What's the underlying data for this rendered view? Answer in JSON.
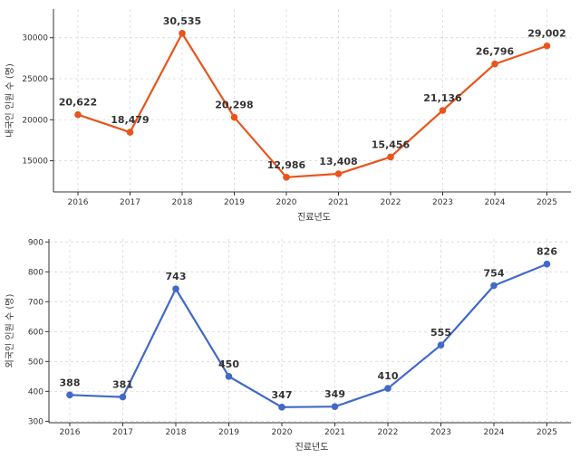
{
  "chart_data": [
    {
      "type": "line",
      "title": "",
      "xlabel": "진료년도",
      "ylabel": "내국인 인원 수 (명)",
      "x": [
        "2016",
        "2017",
        "2018",
        "2019",
        "2020",
        "2021",
        "2022",
        "2023",
        "2024",
        "2025"
      ],
      "values": [
        20622,
        18479,
        30535,
        20298,
        12986,
        13408,
        15456,
        21136,
        26796,
        29002
      ],
      "value_labels": [
        "20,622",
        "18,479",
        "30,535",
        "20,298",
        "12,986",
        "13,408",
        "15,456",
        "21,136",
        "26,796",
        "29,002"
      ],
      "yticks": [
        "15000",
        "20000",
        "25000",
        "30000"
      ],
      "ylim": [
        11200,
        33500
      ],
      "grid": true,
      "color": "#e8541c"
    },
    {
      "type": "line",
      "title": "",
      "xlabel": "진료년도",
      "ylabel": "외국인 인원 수 (명)",
      "x": [
        "2016",
        "2017",
        "2018",
        "2019",
        "2020",
        "2021",
        "2022",
        "2023",
        "2024",
        "2025"
      ],
      "values": [
        388,
        381,
        743,
        450,
        347,
        349,
        410,
        555,
        754,
        826
      ],
      "value_labels": [
        "388",
        "381",
        "743",
        "450",
        "347",
        "349",
        "410",
        "555",
        "754",
        "826"
      ],
      "yticks": [
        "300",
        "400",
        "500",
        "600",
        "700",
        "800",
        "900"
      ],
      "ylim": [
        295,
        910
      ],
      "grid": true,
      "color": "#4169c8"
    }
  ]
}
